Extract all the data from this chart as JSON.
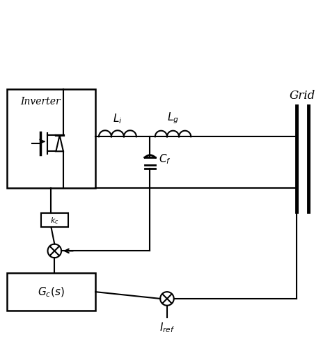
{
  "bg_color": "#ffffff",
  "line_color": "#000000",
  "lw": 1.5,
  "lw_thick": 3.5,
  "grid_label": "Grid",
  "Li_label": "$L_i$",
  "Lg_label": "$L_g$",
  "Cf_label": "$C_f$",
  "kc_label": "$k_c$",
  "Gc_label": "$G_c(s)$",
  "Inverter_label": "Inverter",
  "Iref_label": "$I_{ref}$"
}
